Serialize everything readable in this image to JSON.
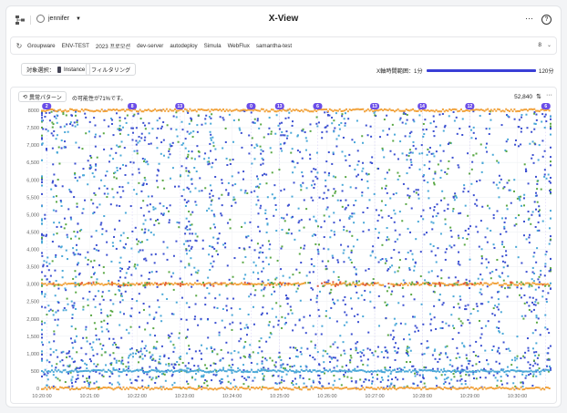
{
  "header": {
    "user": "jennifer",
    "title": "X-View",
    "more": "···",
    "help": "?"
  },
  "tabs": {
    "items": [
      "Groupware",
      "ENV-TEST",
      "2023 프로모션",
      "dev-server",
      "autodeploy",
      "Simula",
      "WebFlux",
      "samantha-test"
    ],
    "count": "8"
  },
  "controls": {
    "target_label": "対象選択：",
    "target_value": "Instance",
    "filter_label": "フィルタリング",
    "range_label": "X軸時間範囲：",
    "range_min": "1分",
    "range_max": "120分",
    "range_fraction": 1.0
  },
  "panel": {
    "pattern_label": "異常パターン",
    "pattern_desc": "の可能性が71%です。",
    "total": "52,840"
  },
  "colors": {
    "accent": "#3a3fd6",
    "dot_blue": "#3b4fd1",
    "dot_cyan": "#4aa8d8",
    "dot_green": "#5aa845",
    "dot_orange": "#f2a23a",
    "dot_red": "#e05a3a",
    "marker": "#6a4de8"
  },
  "chart_data": {
    "type": "scatter",
    "title": "",
    "xlabel": "",
    "ylabel": "",
    "ylim": [
      0,
      8000
    ],
    "yticks": [
      0,
      500,
      1000,
      1500,
      2000,
      2500,
      3000,
      3500,
      4000,
      4500,
      5000,
      5500,
      6000,
      6500,
      7000,
      7500,
      8000
    ],
    "ytick_labels": [
      "0",
      "500",
      "1,000",
      "1,500",
      "2,000",
      "2,500",
      "3,000",
      "3,500",
      "4,000",
      "4,500",
      "5,000",
      "5,500",
      "6,000",
      "6,500",
      "7,000",
      "7,500",
      "8000"
    ],
    "xlim": [
      0,
      10.7
    ],
    "xticks": [
      0,
      1,
      2,
      3,
      4,
      5,
      6,
      7,
      8,
      9,
      10
    ],
    "xtick_labels": [
      "10:20:00",
      "10:21:00",
      "10:22:00",
      "10:23:00",
      "10:24:00",
      "10:25:00",
      "10:26:00",
      "10:27:00",
      "10:28:00",
      "10:29:00",
      "10:30:00"
    ],
    "top_markers": [
      {
        "x": 0.1,
        "label": "2"
      },
      {
        "x": 1.9,
        "label": "8"
      },
      {
        "x": 2.9,
        "label": "13"
      },
      {
        "x": 4.4,
        "label": "0"
      },
      {
        "x": 5.0,
        "label": "13"
      },
      {
        "x": 5.8,
        "label": "6"
      },
      {
        "x": 7.0,
        "label": "13"
      },
      {
        "x": 8.0,
        "label": "14"
      },
      {
        "x": 9.0,
        "label": "12"
      },
      {
        "x": 10.6,
        "label": "6"
      }
    ],
    "horizontal_bands": [
      {
        "y": 3000,
        "color": "orange"
      },
      {
        "y": 500,
        "color": "blue"
      },
      {
        "y": 0,
        "color": "orange"
      },
      {
        "y": 8000,
        "color": "orange"
      }
    ],
    "series": [
      {
        "name": "",
        "color": "blue"
      },
      {
        "name": "",
        "color": "cyan"
      },
      {
        "name": "",
        "color": "green"
      },
      {
        "name": "",
        "color": "orange"
      }
    ]
  }
}
